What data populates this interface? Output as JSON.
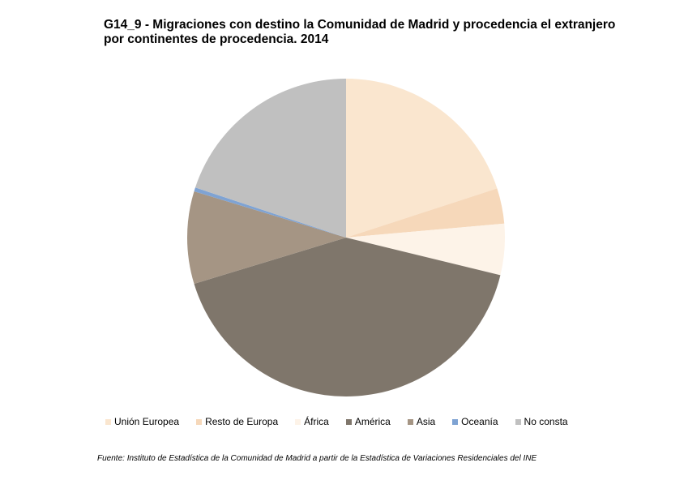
{
  "chart_data": {
    "type": "pie",
    "title": [
      "G14_9 - Migraciones con destino la Comunidad de Madrid y procedencia el extranjero",
      "por continentes de procedencia. 2014"
    ],
    "start": "12 o'clock, clockwise",
    "legend_position": "bottom",
    "series": [
      {
        "name": "Unión Europea",
        "value": 20.0,
        "color": "#FAE6CF"
      },
      {
        "name": "Resto de Europa",
        "value": 3.6,
        "color": "#F6D8BA"
      },
      {
        "name": "África",
        "value": 5.2,
        "color": "#FDF3E8"
      },
      {
        "name": "América",
        "value": 41.5,
        "color": "#7F766B"
      },
      {
        "name": "Asia",
        "value": 9.4,
        "color": "#A59584"
      },
      {
        "name": "Oceanía",
        "value": 0.4,
        "color": "#7FA3D3"
      },
      {
        "name": "No consta",
        "value": 19.9,
        "color": "#C0C0C0"
      }
    ]
  },
  "source": "Fuente: Instituto de Estadística de la Comunidad de Madrid a partir de la Estadística de Variaciones Residenciales del INE"
}
